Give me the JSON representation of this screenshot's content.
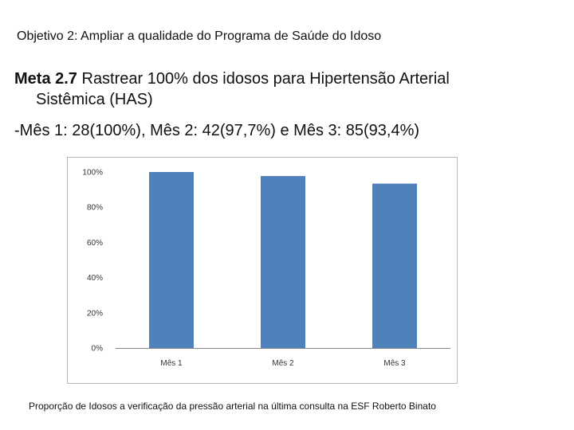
{
  "header": {
    "objective": "Objetivo 2: Ampliar a qualidade do Programa de Saúde do Idoso",
    "meta_label": "Meta 2.7",
    "meta_text_1": " Rastrear 100% dos idosos para Hipertensão Arterial",
    "meta_text_2": "Sistêmica (HAS)",
    "months_summary": "-Mês 1: 28(100%), Mês 2: 42(97,7%) e Mês 3: 85(93,4%)"
  },
  "chart_data": {
    "type": "bar",
    "categories": [
      "Mês 1",
      "Mês 2",
      "Mês 3"
    ],
    "values": [
      100,
      97.7,
      93.4
    ],
    "ylim": [
      0,
      100
    ],
    "yticks": [
      "0%",
      "20%",
      "40%",
      "60%",
      "80%",
      "100%"
    ],
    "bar_color": "#4f81bd",
    "grid": false,
    "legend": "none"
  },
  "caption": "Proporção de Idosos a verificação da pressão arterial na última consulta na ESF Roberto Binato"
}
